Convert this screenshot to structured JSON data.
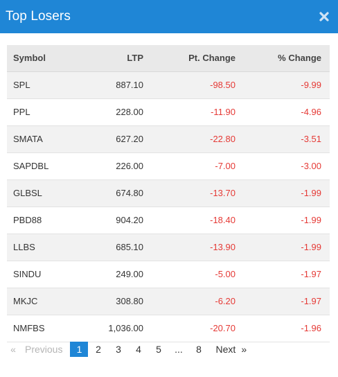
{
  "window": {
    "title": "Top Losers",
    "close_icon": "close-icon"
  },
  "table": {
    "headers": {
      "symbol": "Symbol",
      "ltp": "LTP",
      "pt_change": "Pt. Change",
      "pct_change": "% Change"
    },
    "rows": [
      {
        "symbol": "SPL",
        "ltp": "887.10",
        "pt_change": "-98.50",
        "pct_change": "-9.99"
      },
      {
        "symbol": "PPL",
        "ltp": "228.00",
        "pt_change": "-11.90",
        "pct_change": "-4.96"
      },
      {
        "symbol": "SMATA",
        "ltp": "627.20",
        "pt_change": "-22.80",
        "pct_change": "-3.51"
      },
      {
        "symbol": "SAPDBL",
        "ltp": "226.00",
        "pt_change": "-7.00",
        "pct_change": "-3.00"
      },
      {
        "symbol": "GLBSL",
        "ltp": "674.80",
        "pt_change": "-13.70",
        "pct_change": "-1.99"
      },
      {
        "symbol": "PBD88",
        "ltp": "904.20",
        "pt_change": "-18.40",
        "pct_change": "-1.99"
      },
      {
        "symbol": "LLBS",
        "ltp": "685.10",
        "pt_change": "-13.90",
        "pct_change": "-1.99"
      },
      {
        "symbol": "SINDU",
        "ltp": "249.00",
        "pt_change": "-5.00",
        "pct_change": "-1.97"
      },
      {
        "symbol": "MKJC",
        "ltp": "308.80",
        "pt_change": "-6.20",
        "pct_change": "-1.97"
      },
      {
        "symbol": "NMFBS",
        "ltp": "1,036.00",
        "pt_change": "-20.70",
        "pct_change": "-1.96"
      }
    ]
  },
  "pagination": {
    "prev_arrow": "«",
    "previous": "Previous",
    "pages": [
      "1",
      "2",
      "3",
      "4",
      "5",
      "...",
      "8"
    ],
    "current": "1",
    "next": "Next",
    "next_arrow": "»"
  },
  "colors": {
    "header_bg": "#1f86d6",
    "negative": "#e53935",
    "active_page_bg": "#1f86d6"
  }
}
